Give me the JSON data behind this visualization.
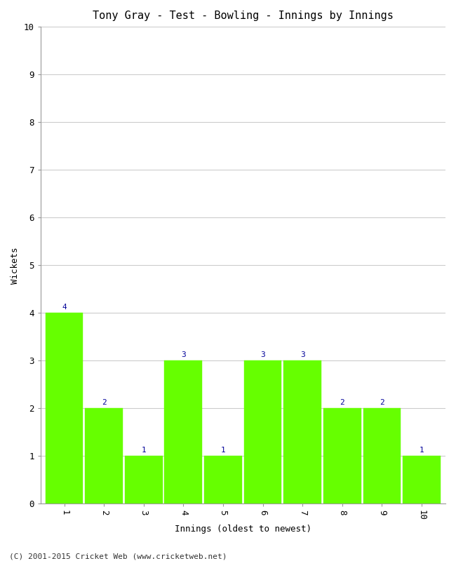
{
  "title": "Tony Gray - Test - Bowling - Innings by Innings",
  "xlabel": "Innings (oldest to newest)",
  "ylabel": "Wickets",
  "categories": [
    "1",
    "2",
    "3",
    "4",
    "5",
    "6",
    "7",
    "8",
    "9",
    "10"
  ],
  "values": [
    4,
    2,
    1,
    3,
    1,
    3,
    3,
    2,
    2,
    1
  ],
  "bar_color": "#66ff00",
  "bar_edge_color": "#66ff00",
  "ylim": [
    0,
    10
  ],
  "yticks": [
    0,
    1,
    2,
    3,
    4,
    5,
    6,
    7,
    8,
    9,
    10
  ],
  "label_color": "#000099",
  "background_color": "#ffffff",
  "grid_color": "#cccccc",
  "footer": "(C) 2001-2015 Cricket Web (www.cricketweb.net)",
  "title_fontsize": 11,
  "axis_fontsize": 9,
  "label_fontsize": 8,
  "footer_fontsize": 8
}
